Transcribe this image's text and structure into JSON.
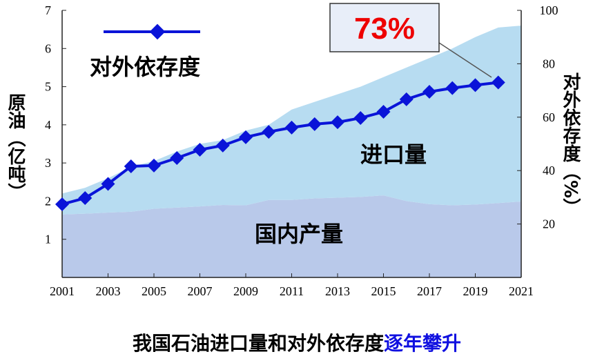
{
  "chart_data": {
    "type": "area-line",
    "x": [
      2001,
      2002,
      2003,
      2004,
      2005,
      2006,
      2007,
      2008,
      2009,
      2010,
      2011,
      2012,
      2013,
      2014,
      2015,
      2016,
      2017,
      2018,
      2019,
      2020,
      2021
    ],
    "xlim": [
      2001,
      2021
    ],
    "xticks": [
      2001,
      2003,
      2005,
      2007,
      2009,
      2011,
      2013,
      2015,
      2017,
      2019,
      2021
    ],
    "ylim": [
      0,
      7
    ],
    "yticks": [
      1,
      2,
      3,
      4,
      5,
      6,
      7
    ],
    "y_label": "原油（亿吨）",
    "y2lim": [
      0,
      100
    ],
    "y2ticks": [
      20,
      40,
      60,
      80,
      100
    ],
    "y2_label": "对外依存度（%）",
    "series": [
      {
        "name": "国内产量",
        "type": "area",
        "color": "#b9c9ea",
        "values": [
          1.65,
          1.67,
          1.7,
          1.72,
          1.8,
          1.83,
          1.86,
          1.9,
          1.89,
          2.03,
          2.03,
          2.07,
          2.09,
          2.11,
          2.15,
          2.0,
          1.92,
          1.89,
          1.91,
          1.95,
          1.99
        ]
      },
      {
        "name": "进口量",
        "type": "area",
        "color": "#b7dcf1",
        "values": [
          0.55,
          0.68,
          0.9,
          1.18,
          1.25,
          1.47,
          1.64,
          1.7,
          1.96,
          1.97,
          2.37,
          2.53,
          2.71,
          2.89,
          3.1,
          3.5,
          3.83,
          4.11,
          4.39,
          4.6,
          4.61
        ]
      },
      {
        "name": "对外依存度",
        "type": "line",
        "axis": "y2",
        "color": "#0a14d8",
        "values": [
          27.4,
          29.7,
          35,
          41.6,
          41.9,
          44.7,
          47.8,
          49.4,
          52.5,
          54.5,
          56.1,
          57.4,
          58.1,
          59.7,
          62,
          66.7,
          69.5,
          70.9,
          72,
          73,
          null
        ]
      }
    ],
    "annotations": [
      {
        "text": "73%",
        "color": "#ee0000"
      }
    ],
    "caption": {
      "text": "我国石油进口量和对外依存度",
      "highlight": "逐年攀升",
      "highlight_color": "#1010e0"
    }
  }
}
